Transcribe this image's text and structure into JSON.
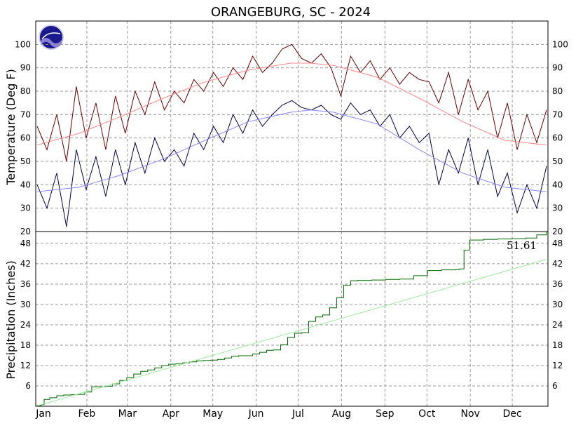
{
  "chart_data": [
    {
      "type": "line",
      "title": "ORANGEBURG, SC - 2024",
      "ylabel": "Temperature (Deg F)",
      "ylim": [
        20,
        110
      ],
      "yticks": [
        20,
        30,
        40,
        50,
        60,
        70,
        80,
        90,
        100
      ],
      "grid": true,
      "months": [
        "Jan",
        "Feb",
        "Mar",
        "Apr",
        "May",
        "Jun",
        "Jul",
        "Aug",
        "Sep",
        "Oct",
        "Nov",
        "Dec"
      ],
      "month_start_days": [
        0,
        31,
        60,
        91,
        121,
        152,
        182,
        213,
        244,
        274,
        305,
        335
      ],
      "series": [
        {
          "key": "daily_high",
          "color": "#660000",
          "x": [
            1,
            8,
            15,
            22,
            29,
            36,
            43,
            50,
            57,
            64,
            71,
            78,
            85,
            92,
            99,
            106,
            113,
            120,
            127,
            134,
            141,
            148,
            155,
            162,
            169,
            176,
            183,
            190,
            197,
            204,
            211,
            218,
            225,
            232,
            239,
            246,
            253,
            260,
            267,
            274,
            281,
            288,
            295,
            302,
            309,
            316,
            323,
            330,
            337,
            344,
            351,
            358,
            365
          ],
          "values": [
            65,
            55,
            70,
            50,
            82,
            60,
            75,
            55,
            78,
            62,
            80,
            70,
            84,
            72,
            80,
            75,
            85,
            80,
            88,
            82,
            90,
            85,
            95,
            88,
            92,
            98,
            100,
            94,
            92,
            96,
            90,
            78,
            95,
            88,
            93,
            85,
            90,
            83,
            88,
            85,
            84,
            75,
            88,
            70,
            85,
            72,
            80,
            60,
            75,
            55,
            70,
            58,
            72
          ]
        },
        {
          "key": "daily_low",
          "color": "#000044",
          "x": [
            1,
            8,
            15,
            22,
            29,
            36,
            43,
            50,
            57,
            64,
            71,
            78,
            85,
            92,
            99,
            106,
            113,
            120,
            127,
            134,
            141,
            148,
            155,
            162,
            169,
            176,
            183,
            190,
            197,
            204,
            211,
            218,
            225,
            232,
            239,
            246,
            253,
            260,
            267,
            274,
            281,
            288,
            295,
            302,
            309,
            316,
            323,
            330,
            337,
            344,
            351,
            358,
            365
          ],
          "values": [
            40,
            30,
            45,
            22,
            55,
            38,
            52,
            35,
            55,
            40,
            58,
            45,
            60,
            50,
            55,
            48,
            62,
            55,
            65,
            58,
            70,
            62,
            72,
            65,
            70,
            74,
            76,
            73,
            72,
            74,
            70,
            68,
            75,
            70,
            72,
            65,
            70,
            60,
            65,
            58,
            62,
            40,
            55,
            45,
            60,
            40,
            55,
            35,
            45,
            28,
            40,
            30,
            48
          ]
        },
        {
          "key": "normal_high",
          "color": "#ff8888",
          "x": [
            1,
            31,
            60,
            91,
            121,
            152,
            182,
            196,
            213,
            244,
            274,
            305,
            335,
            365
          ],
          "values": [
            57,
            62,
            69,
            77,
            84,
            89,
            92,
            92,
            91,
            86,
            77,
            67,
            59,
            57
          ]
        },
        {
          "key": "normal_low",
          "color": "#8888ff",
          "x": [
            1,
            31,
            60,
            91,
            121,
            152,
            182,
            196,
            213,
            244,
            274,
            305,
            335,
            365
          ],
          "values": [
            37,
            39,
            44,
            51,
            59,
            67,
            71,
            72,
            71,
            66,
            55,
            45,
            39,
            37
          ]
        }
      ]
    },
    {
      "type": "area",
      "ylabel": "Precipitation (Inches)",
      "ylim": [
        0,
        51.5
      ],
      "yticks": [
        6,
        12,
        18,
        24,
        30,
        36,
        42,
        48
      ],
      "grid": true,
      "annotation": "51.61",
      "series": [
        {
          "key": "observed_cumulative",
          "color": "#006600",
          "x": [
            1,
            4,
            6,
            10,
            15,
            20,
            25,
            30,
            35,
            40,
            45,
            50,
            55,
            60,
            65,
            70,
            75,
            80,
            85,
            90,
            95,
            100,
            105,
            110,
            115,
            120,
            125,
            130,
            135,
            140,
            145,
            150,
            155,
            160,
            165,
            170,
            175,
            180,
            185,
            190,
            195,
            200,
            205,
            210,
            215,
            220,
            225,
            230,
            235,
            240,
            250,
            260,
            270,
            280,
            290,
            300,
            303,
            306,
            310,
            320,
            330,
            340,
            350,
            358,
            365
          ],
          "values": [
            0.2,
            0.5,
            2.0,
            2.5,
            3.1,
            3.3,
            3.4,
            3.5,
            4.2,
            5.7,
            5.7,
            5.9,
            6.6,
            7.6,
            8.4,
            9.5,
            10.3,
            10.7,
            11.3,
            12.0,
            12.4,
            12.5,
            12.8,
            13.1,
            13.4,
            13.5,
            13.6,
            13.8,
            14.2,
            14.7,
            14.9,
            14.9,
            15.4,
            15.9,
            16.5,
            16.6,
            18.1,
            20.3,
            21.5,
            21.7,
            25.0,
            26.3,
            26.9,
            29.0,
            32.0,
            35.7,
            37.0,
            37.1,
            37.1,
            37.2,
            37.4,
            37.5,
            38.5,
            40.0,
            40.2,
            40.3,
            40.5,
            46.0,
            49.0,
            49.2,
            49.3,
            49.4,
            49.6,
            50.5,
            51.61
          ]
        },
        {
          "key": "normal_cumulative",
          "color": "#99ee99",
          "x": [
            1,
            365
          ],
          "values": [
            0.1,
            43.3
          ]
        }
      ]
    }
  ]
}
